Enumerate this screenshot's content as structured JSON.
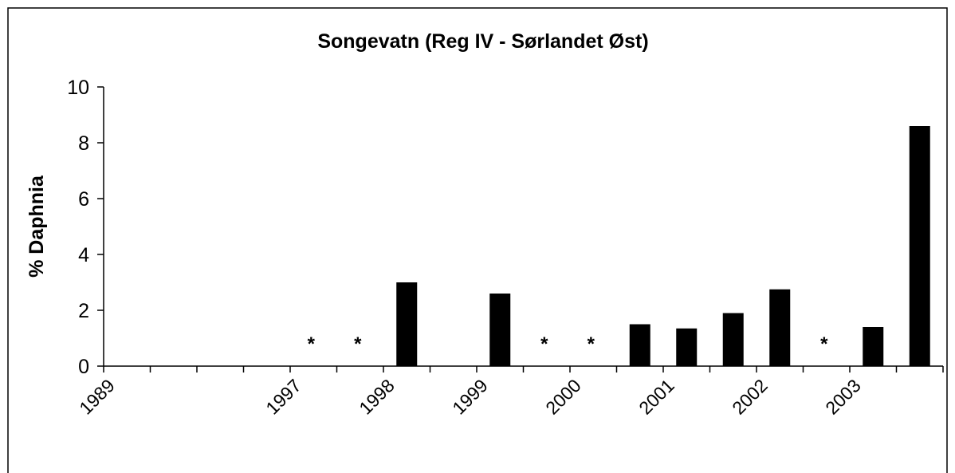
{
  "chart_data": {
    "type": "bar",
    "title": "Songevatn (Reg IV - Sørlandet Øst)",
    "y_label": "% Daphnia",
    "categories": [
      "1989",
      null,
      null,
      null,
      "1997",
      null,
      "1998",
      null,
      "1999",
      null,
      "2000",
      null,
      "2001",
      null,
      "2002",
      null,
      "2003",
      null
    ],
    "values": [
      null,
      null,
      null,
      null,
      null,
      null,
      3.0,
      null,
      2.6,
      null,
      null,
      1.5,
      1.35,
      1.9,
      2.75,
      null,
      1.4,
      8.6
    ],
    "value_labels": [
      null,
      null,
      null,
      null,
      "*",
      "*",
      null,
      null,
      null,
      "*",
      "*",
      null,
      null,
      null,
      null,
      "*",
      null,
      null
    ],
    "color": "#000000",
    "ylim": [
      0,
      10
    ],
    "yticks": [
      0,
      2,
      4,
      6,
      8,
      10
    ],
    "grid": false
  }
}
